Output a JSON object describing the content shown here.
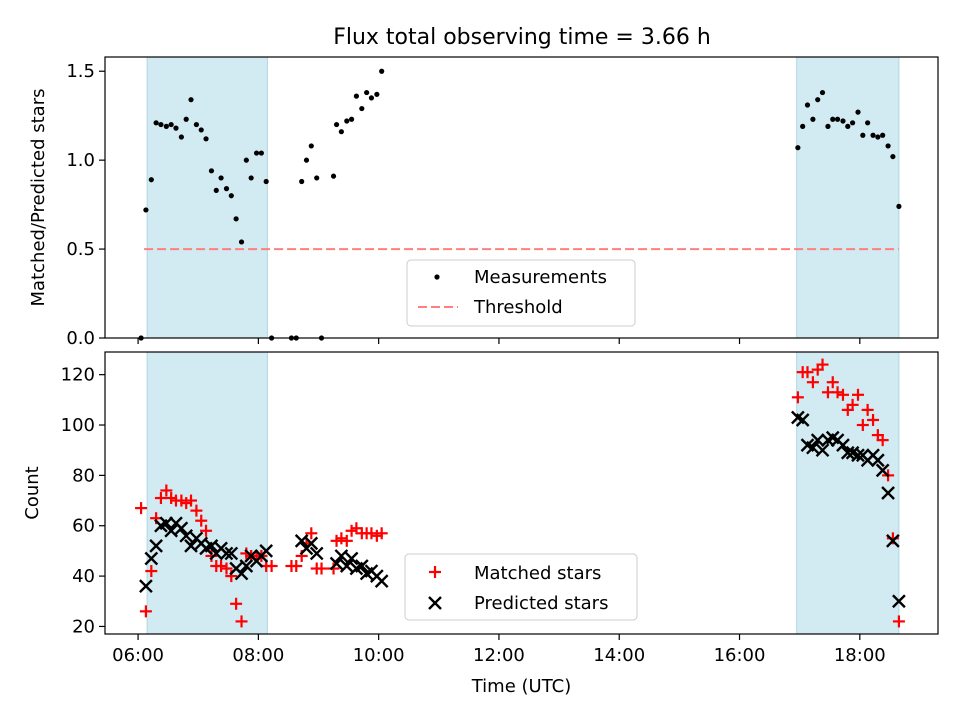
{
  "title": "Flux total observing time = 3.66 h",
  "colors": {
    "shade": "#add8e6",
    "threshold": "#ff7f7f",
    "matched": "#ff0000",
    "predicted": "#000000",
    "measurement": "#000000"
  },
  "chart_data": [
    {
      "type": "scatter",
      "ylabel": "Matched/Predicted stars",
      "xlim": [
        5.45,
        19.3
      ],
      "ylim": [
        0,
        1.58
      ],
      "yticks": [
        0.0,
        0.5,
        1.0,
        1.5
      ],
      "ytick_labels": [
        "0.0",
        "0.5",
        "1.0",
        "1.5"
      ],
      "shaded_intervals": [
        [
          6.15,
          8.15
        ],
        [
          16.95,
          18.65
        ]
      ],
      "threshold": {
        "name": "Threshold",
        "y": 0.5,
        "x_range": [
          6.1,
          18.65
        ],
        "style": "dashed"
      },
      "legend": {
        "position": "lower-center",
        "entries": [
          "Measurements",
          "Threshold"
        ]
      },
      "series": [
        {
          "name": "Measurements",
          "marker": "dot",
          "points": [
            [
              6.05,
              0.0
            ],
            [
              6.13,
              0.72
            ],
            [
              6.22,
              0.89
            ],
            [
              6.3,
              1.21
            ],
            [
              6.38,
              1.2
            ],
            [
              6.47,
              1.19
            ],
            [
              6.55,
              1.2
            ],
            [
              6.63,
              1.18
            ],
            [
              6.72,
              1.13
            ],
            [
              6.8,
              1.23
            ],
            [
              6.88,
              1.34
            ],
            [
              6.97,
              1.2
            ],
            [
              7.05,
              1.17
            ],
            [
              7.13,
              1.12
            ],
            [
              7.22,
              0.94
            ],
            [
              7.3,
              0.83
            ],
            [
              7.38,
              0.9
            ],
            [
              7.47,
              0.84
            ],
            [
              7.55,
              0.8
            ],
            [
              7.63,
              0.67
            ],
            [
              7.72,
              0.54
            ],
            [
              7.8,
              1.0
            ],
            [
              7.88,
              0.9
            ],
            [
              7.97,
              1.04
            ],
            [
              8.05,
              1.04
            ],
            [
              8.13,
              0.88
            ],
            [
              8.22,
              0.0
            ],
            [
              8.55,
              0.0
            ],
            [
              8.63,
              0.0
            ],
            [
              8.72,
              0.88
            ],
            [
              8.8,
              1.0
            ],
            [
              8.88,
              1.08
            ],
            [
              8.97,
              0.9
            ],
            [
              9.05,
              0.0
            ],
            [
              9.25,
              0.91
            ],
            [
              9.3,
              1.2
            ],
            [
              9.38,
              1.16
            ],
            [
              9.47,
              1.22
            ],
            [
              9.55,
              1.23
            ],
            [
              9.63,
              1.36
            ],
            [
              9.72,
              1.29
            ],
            [
              9.8,
              1.38
            ],
            [
              9.88,
              1.35
            ],
            [
              9.97,
              1.37
            ],
            [
              10.05,
              1.5
            ],
            [
              16.97,
              1.07
            ],
            [
              17.05,
              1.19
            ],
            [
              17.13,
              1.31
            ],
            [
              17.22,
              1.23
            ],
            [
              17.3,
              1.34
            ],
            [
              17.38,
              1.38
            ],
            [
              17.47,
              1.19
            ],
            [
              17.55,
              1.23
            ],
            [
              17.63,
              1.23
            ],
            [
              17.72,
              1.22
            ],
            [
              17.8,
              1.19
            ],
            [
              17.88,
              1.21
            ],
            [
              17.97,
              1.27
            ],
            [
              18.05,
              1.14
            ],
            [
              18.13,
              1.21
            ],
            [
              18.22,
              1.14
            ],
            [
              18.3,
              1.13
            ],
            [
              18.38,
              1.14
            ],
            [
              18.47,
              1.08
            ],
            [
              18.55,
              1.02
            ],
            [
              18.65,
              0.74
            ]
          ]
        }
      ]
    },
    {
      "type": "scatter",
      "xlabel": "Time (UTC)",
      "ylabel": "Count",
      "xlim": [
        5.45,
        19.3
      ],
      "ylim": [
        17,
        129
      ],
      "xticks": [
        6,
        8,
        10,
        12,
        14,
        16,
        18
      ],
      "xtick_labels": [
        "06:00",
        "08:00",
        "10:00",
        "12:00",
        "14:00",
        "16:00",
        "18:00"
      ],
      "yticks": [
        20,
        40,
        60,
        80,
        100,
        120
      ],
      "ytick_labels": [
        "20",
        "40",
        "60",
        "80",
        "100",
        "120"
      ],
      "shaded_intervals": [
        [
          6.15,
          8.15
        ],
        [
          16.95,
          18.65
        ]
      ],
      "legend": {
        "position": "lower-center",
        "entries": [
          "Matched stars",
          "Predicted stars"
        ]
      },
      "series": [
        {
          "name": "Matched stars",
          "marker": "plus",
          "points": [
            [
              6.05,
              67
            ],
            [
              6.13,
              26
            ],
            [
              6.22,
              42
            ],
            [
              6.3,
              63
            ],
            [
              6.38,
              71
            ],
            [
              6.47,
              74
            ],
            [
              6.55,
              71
            ],
            [
              6.63,
              70
            ],
            [
              6.72,
              70
            ],
            [
              6.8,
              69
            ],
            [
              6.88,
              70
            ],
            [
              6.97,
              66
            ],
            [
              7.05,
              62
            ],
            [
              7.13,
              58
            ],
            [
              7.22,
              48
            ],
            [
              7.3,
              44
            ],
            [
              7.38,
              44
            ],
            [
              7.47,
              43
            ],
            [
              7.55,
              40
            ],
            [
              7.63,
              29
            ],
            [
              7.72,
              22
            ],
            [
              7.8,
              49
            ],
            [
              7.88,
              48
            ],
            [
              7.97,
              48
            ],
            [
              8.05,
              48
            ],
            [
              8.13,
              44
            ],
            [
              8.22,
              44
            ],
            [
              8.55,
              44
            ],
            [
              8.63,
              44
            ],
            [
              8.72,
              48
            ],
            [
              8.8,
              53
            ],
            [
              8.88,
              57
            ],
            [
              8.97,
              43
            ],
            [
              9.05,
              43
            ],
            [
              9.25,
              43
            ],
            [
              9.3,
              54
            ],
            [
              9.38,
              55
            ],
            [
              9.47,
              54
            ],
            [
              9.55,
              58
            ],
            [
              9.63,
              59
            ],
            [
              9.72,
              57
            ],
            [
              9.8,
              57
            ],
            [
              9.88,
              57
            ],
            [
              9.97,
              56
            ],
            [
              10.05,
              57
            ],
            [
              16.97,
              111
            ],
            [
              17.05,
              121
            ],
            [
              17.13,
              121
            ],
            [
              17.22,
              117
            ],
            [
              17.3,
              122
            ],
            [
              17.38,
              124
            ],
            [
              17.47,
              113
            ],
            [
              17.55,
              117
            ],
            [
              17.63,
              113
            ],
            [
              17.72,
              112
            ],
            [
              17.8,
              106
            ],
            [
              17.88,
              108
            ],
            [
              17.97,
              112
            ],
            [
              18.05,
              100
            ],
            [
              18.13,
              106
            ],
            [
              18.22,
              102
            ],
            [
              18.3,
              96
            ],
            [
              18.38,
              94
            ],
            [
              18.47,
              80
            ],
            [
              18.55,
              55
            ],
            [
              18.65,
              22
            ]
          ]
        },
        {
          "name": "Predicted stars",
          "marker": "x",
          "points": [
            [
              6.13,
              36
            ],
            [
              6.22,
              47
            ],
            [
              6.3,
              52
            ],
            [
              6.38,
              60
            ],
            [
              6.47,
              61
            ],
            [
              6.55,
              58
            ],
            [
              6.63,
              61
            ],
            [
              6.72,
              59
            ],
            [
              6.8,
              56
            ],
            [
              6.88,
              52
            ],
            [
              6.97,
              55
            ],
            [
              7.05,
              53
            ],
            [
              7.13,
              51
            ],
            [
              7.22,
              52
            ],
            [
              7.3,
              49
            ],
            [
              7.38,
              51
            ],
            [
              7.47,
              49
            ],
            [
              7.55,
              49
            ],
            [
              7.63,
              43
            ],
            [
              7.72,
              41
            ],
            [
              7.8,
              44
            ],
            [
              7.88,
              48
            ],
            [
              7.97,
              46
            ],
            [
              8.05,
              48
            ],
            [
              8.13,
              50
            ],
            [
              8.72,
              54
            ],
            [
              8.8,
              51
            ],
            [
              8.88,
              53
            ],
            [
              8.97,
              49
            ],
            [
              9.3,
              45
            ],
            [
              9.38,
              48
            ],
            [
              9.47,
              44
            ],
            [
              9.55,
              47
            ],
            [
              9.63,
              43
            ],
            [
              9.72,
              44
            ],
            [
              9.8,
              41
            ],
            [
              9.88,
              42
            ],
            [
              9.97,
              40
            ],
            [
              10.05,
              38
            ],
            [
              16.97,
              103
            ],
            [
              17.05,
              102
            ],
            [
              17.13,
              92
            ],
            [
              17.22,
              91
            ],
            [
              17.3,
              94
            ],
            [
              17.38,
              90
            ],
            [
              17.47,
              94
            ],
            [
              17.55,
              95
            ],
            [
              17.63,
              94
            ],
            [
              17.72,
              92
            ],
            [
              17.8,
              89
            ],
            [
              17.88,
              89
            ],
            [
              17.97,
              88
            ],
            [
              18.05,
              88
            ],
            [
              18.13,
              86
            ],
            [
              18.22,
              88
            ],
            [
              18.3,
              86
            ],
            [
              18.38,
              82
            ],
            [
              18.47,
              73
            ],
            [
              18.55,
              54
            ],
            [
              18.65,
              30
            ]
          ]
        }
      ]
    }
  ]
}
